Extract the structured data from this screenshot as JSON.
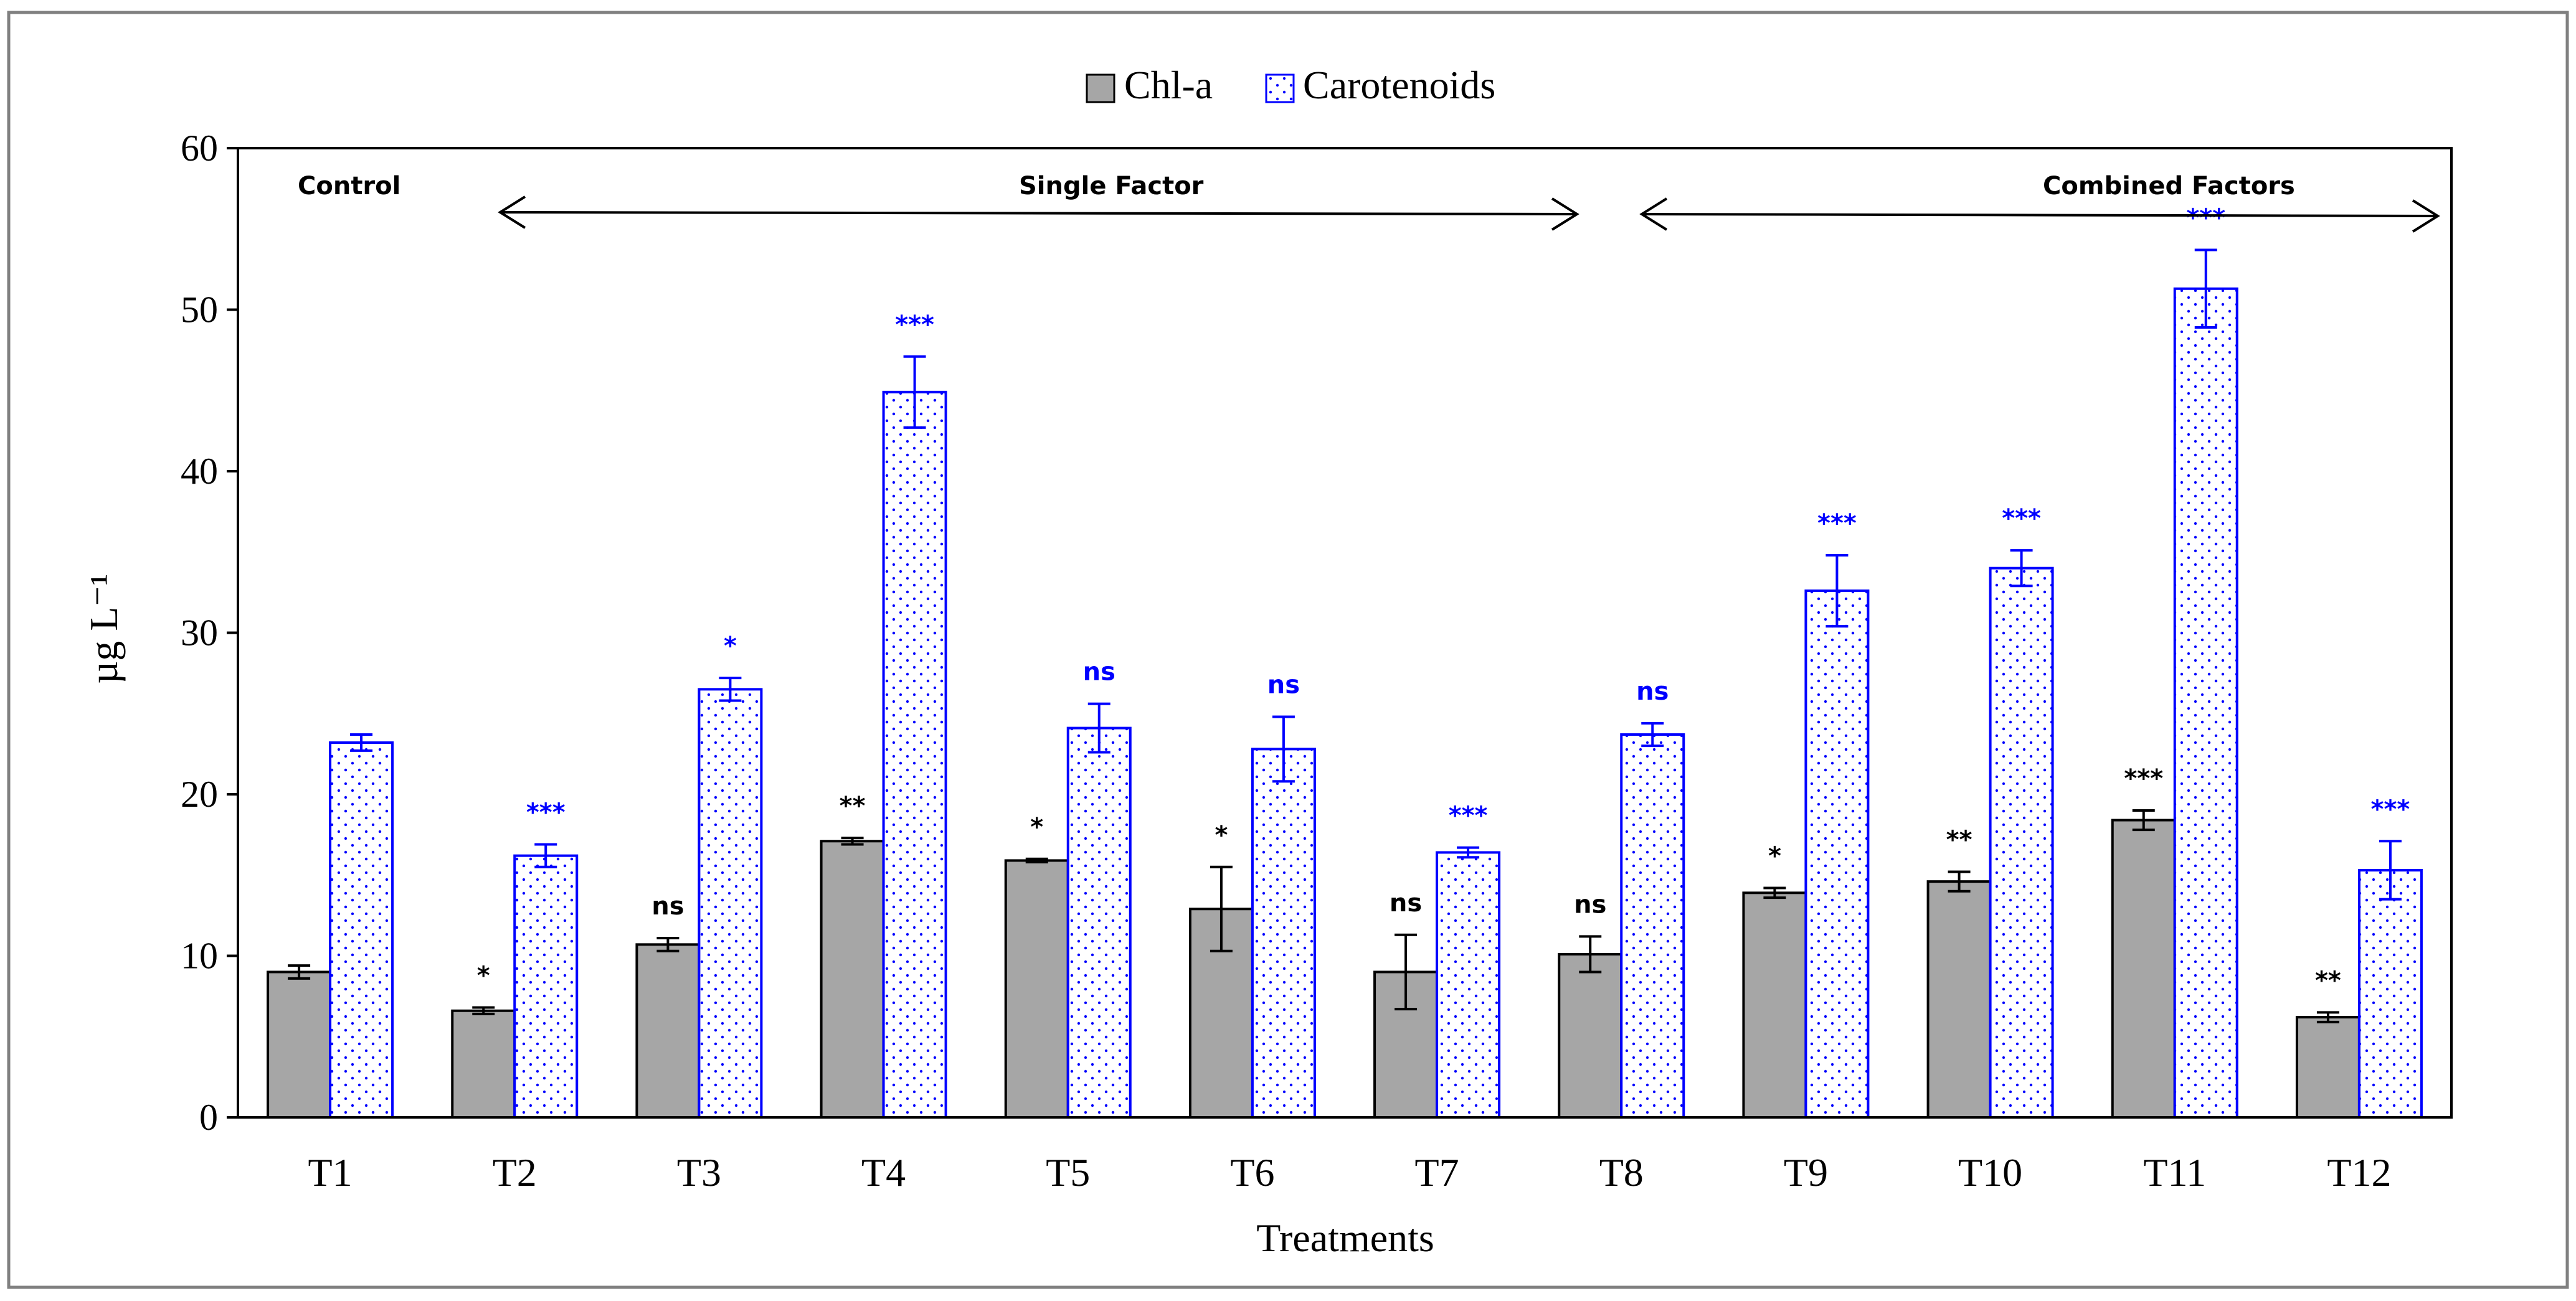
{
  "chart_data": {
    "type": "bar",
    "title": "",
    "xlabel": "Treatments",
    "ylabel": "µg  L⁻¹",
    "ylim": [
      0,
      60
    ],
    "yticks": [
      0,
      10,
      20,
      30,
      40,
      50,
      60
    ],
    "categories": [
      "T1",
      "T2",
      "T3",
      "T4",
      "T5",
      "T6",
      "T7",
      "T8",
      "T9",
      "T10",
      "T11",
      "T12"
    ],
    "series": [
      {
        "name": "Chl-a",
        "color": "#a6a6a6",
        "edge": "#000000",
        "values": [
          9.0,
          6.6,
          10.7,
          17.1,
          15.9,
          12.9,
          9.0,
          10.1,
          13.9,
          14.6,
          18.4,
          6.2
        ],
        "errors": [
          0.4,
          0.2,
          0.4,
          0.2,
          0.1,
          2.6,
          2.3,
          1.1,
          0.3,
          0.6,
          0.6,
          0.3
        ],
        "significance": [
          "",
          "*",
          "ns",
          "**",
          "*",
          "*",
          "ns",
          "ns",
          "*",
          "**",
          "***",
          "**"
        ],
        "sig_color": "#000000"
      },
      {
        "name": "Carotenoids",
        "color": "#ffffff",
        "edge": "#0000ff",
        "pattern": "dots",
        "values": [
          23.2,
          16.2,
          26.5,
          44.9,
          24.1,
          22.8,
          16.4,
          23.7,
          32.6,
          34.0,
          51.3,
          15.3
        ],
        "errors": [
          0.5,
          0.7,
          0.7,
          2.2,
          1.5,
          2.0,
          0.3,
          0.7,
          2.2,
          1.1,
          2.4,
          1.8
        ],
        "significance": [
          "",
          "***",
          "*",
          "***",
          "ns",
          "ns",
          "***",
          "ns",
          "***",
          "***",
          "***",
          "***"
        ],
        "sig_color": "#0000ff"
      }
    ],
    "legend": {
      "position": "top-center",
      "entries": [
        "Chl-a",
        "Carotenoids"
      ]
    },
    "annotations": {
      "control": "Control",
      "single": "Single Factor",
      "combined": "Combined  Factors"
    }
  }
}
